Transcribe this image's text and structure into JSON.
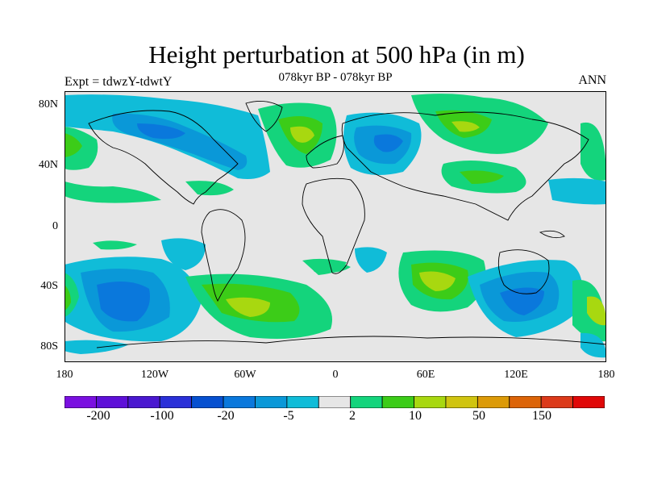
{
  "header": {
    "title": "Height perturbation at 500 hPa (in m)",
    "subtitle": "078kyr BP - 078kyr BP",
    "experiment": "Expt = tdwzY-tdwtY",
    "season": "ANN"
  },
  "axes": {
    "lat_labels": [
      "80N",
      "40N",
      "0",
      "40S",
      "80S"
    ],
    "lon_labels": [
      "180",
      "120W",
      "60W",
      "0",
      "60E",
      "120E",
      "180"
    ]
  },
  "colorbar": {
    "colors": [
      "#7a10e0",
      "#5e10d8",
      "#4a18d0",
      "#2a30d8",
      "#0650d0",
      "#0a78dc",
      "#0a98d8",
      "#10bcd8",
      "#e6e6e6",
      "#14d47c",
      "#3ccc18",
      "#a8d810",
      "#d0c410",
      "#dc9a08",
      "#dc6408",
      "#dc3a1a",
      "#e00808"
    ],
    "labels": [
      "-200",
      "-100",
      "-20",
      "-5",
      "2",
      "10",
      "50",
      "150"
    ]
  },
  "palette": {
    "background": "#e6e6e6",
    "neg_light": "#10bcd8",
    "neg_mid": "#0a98d8",
    "neg_strong": "#0a78dc",
    "pos_light": "#14d47c",
    "pos_mid": "#3ccc18",
    "pos_strong": "#a8d810",
    "coast": "#000000"
  }
}
